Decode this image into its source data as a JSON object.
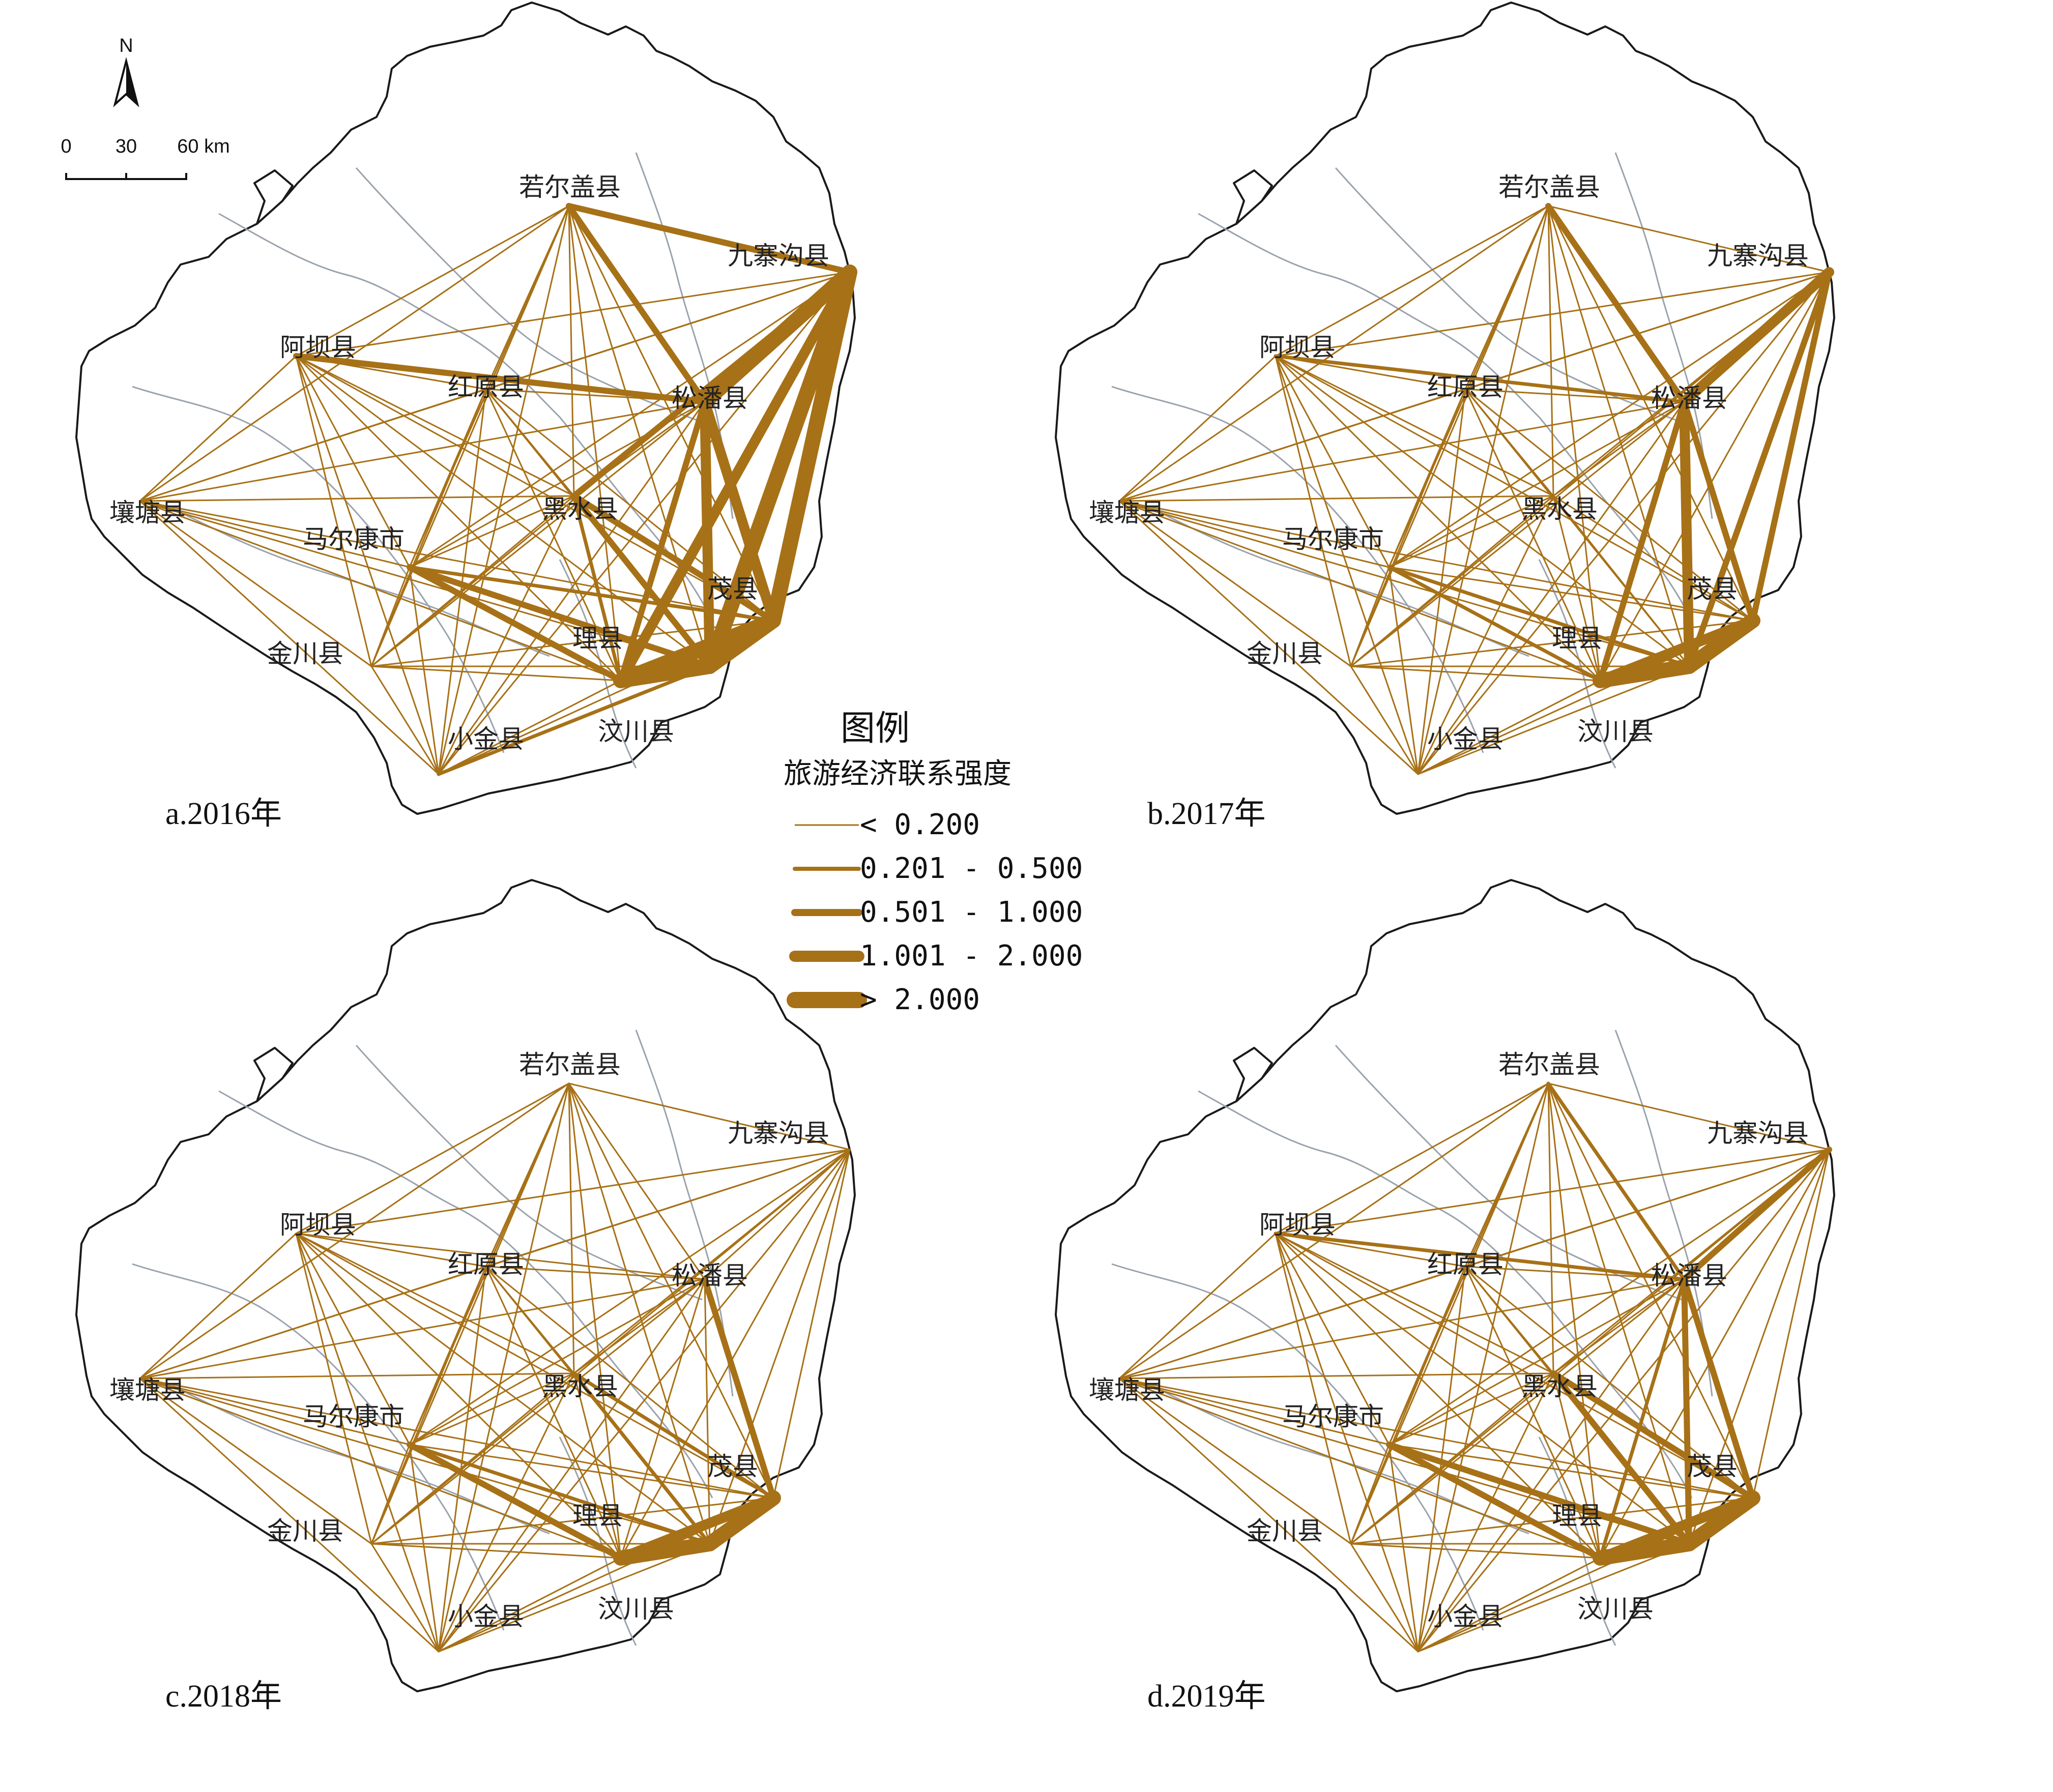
{
  "north_label": "N",
  "scale_bar": {
    "labels": [
      "0",
      "30",
      "60 km"
    ]
  },
  "legend": {
    "title": "图例",
    "subtitle": "旅游经济联系强度",
    "classes": [
      {
        "label": "< 0.200"
      },
      {
        "label": "0.201 - 0.500"
      },
      {
        "label": "0.501 - 1.000"
      },
      {
        "label": "1.001 - 2.000"
      },
      {
        "label": "> 2.000"
      }
    ]
  },
  "colors": {
    "link": "#A77117",
    "boundary": "#1a1a1a",
    "river": "#9aa3ad"
  },
  "counties": [
    "若尔盖县",
    "九寨沟县",
    "阿坝县",
    "红原县",
    "松潘县",
    "壤塘县",
    "黑水县",
    "马尔康市",
    "茂县",
    "金川县",
    "理县",
    "小金县",
    "汶川县"
  ],
  "county_labels": {
    "2016": [
      "若尔盖县",
      "九寨沟县",
      "阿坝县",
      "红原县",
      "松潘县",
      "壤塘县",
      "黑水县",
      "马尔康市",
      "茂县",
      "金川县",
      "理县",
      "小金县",
      "汶川县"
    ],
    "2017": [
      "若尔盖县",
      "九寨沟县",
      "阿坝县",
      "红原县",
      "松潘县",
      "壤塘县",
      "黑水县",
      "马尔康市",
      "茂县",
      "金川县",
      "理县",
      "小金县",
      "汶川县"
    ],
    "2018": [
      "若尔盖县",
      "九寨沟县",
      "阿坝县",
      "红原县",
      "松潘县",
      "壤塘县",
      "黑水县",
      "马尔康市",
      "茂县",
      "金川县",
      "理县",
      "小金县",
      "汶川县"
    ],
    "2019": [
      "若尔盖县",
      "九寨沟县",
      "阿坝县",
      "红原县",
      "松潘县",
      "壤塘县",
      "黑水县",
      "马尔康市",
      "茂县",
      "金川县",
      "理县",
      "小金县",
      "汶川县"
    ]
  },
  "panels": [
    {
      "label": "a.2016年",
      "strong_links": [
        {
          "from": "汶川县",
          "to": "九寨沟县",
          "class": 4
        },
        {
          "from": "茂县",
          "to": "九寨沟县",
          "class": 4
        },
        {
          "from": "松潘县",
          "to": "九寨沟县",
          "class": 4
        },
        {
          "from": "汶川县",
          "to": "茂县",
          "class": 4
        },
        {
          "from": "理县",
          "to": "茂县",
          "class": 4
        },
        {
          "from": "理县",
          "to": "汶川县",
          "class": 4
        },
        {
          "from": "松潘县",
          "to": "汶川县",
          "class": 3
        },
        {
          "from": "松潘县",
          "to": "茂县",
          "class": 3
        },
        {
          "from": "理县",
          "to": "九寨沟县",
          "class": 3
        },
        {
          "from": "理县",
          "to": "松潘县",
          "class": 2
        },
        {
          "from": "若尔盖县",
          "to": "松潘县",
          "class": 2
        },
        {
          "from": "若尔盖县",
          "to": "九寨沟县",
          "class": 2
        },
        {
          "from": "阿坝县",
          "to": "松潘县",
          "class": 2
        },
        {
          "from": "马尔康市",
          "to": "理县",
          "class": 2
        },
        {
          "from": "马尔康市",
          "to": "汶川县",
          "class": 2
        },
        {
          "from": "黑水县",
          "to": "茂县",
          "class": 2
        },
        {
          "from": "黑水县",
          "to": "九寨沟县",
          "class": 2
        },
        {
          "from": "黑水县",
          "to": "汶川县",
          "class": 2
        },
        {
          "from": "小金县",
          "to": "汶川县",
          "class": 1
        },
        {
          "from": "马尔康市",
          "to": "茂县",
          "class": 1
        },
        {
          "from": "黑水县",
          "to": "理县",
          "class": 1
        }
      ]
    },
    {
      "label": "b.2017年",
      "strong_links": [
        {
          "from": "理县",
          "to": "汶川县",
          "class": 4
        },
        {
          "from": "汶川县",
          "to": "茂县",
          "class": 4
        },
        {
          "from": "理县",
          "to": "茂县",
          "class": 3
        },
        {
          "from": "松潘县",
          "to": "九寨沟县",
          "class": 3
        },
        {
          "from": "松潘县",
          "to": "汶川县",
          "class": 3
        },
        {
          "from": "理县",
          "to": "松潘县",
          "class": 2
        },
        {
          "from": "茂县",
          "to": "松潘县",
          "class": 2
        },
        {
          "from": "茂县",
          "to": "九寨沟县",
          "class": 2
        },
        {
          "from": "汶川县",
          "to": "九寨沟县",
          "class": 2
        },
        {
          "from": "若尔盖县",
          "to": "松潘县",
          "class": 2
        },
        {
          "from": "阿坝县",
          "to": "松潘县",
          "class": 1
        },
        {
          "from": "马尔康市",
          "to": "理县",
          "class": 1
        },
        {
          "from": "马尔康市",
          "to": "汶川县",
          "class": 1
        }
      ]
    },
    {
      "label": "c.2018年",
      "strong_links": [
        {
          "from": "理县",
          "to": "汶川县",
          "class": 4
        },
        {
          "from": "汶川县",
          "to": "茂县",
          "class": 4
        },
        {
          "from": "理县",
          "to": "茂县",
          "class": 3
        },
        {
          "from": "松潘县",
          "to": "茂县",
          "class": 2
        },
        {
          "from": "马尔康市",
          "to": "理县",
          "class": 2
        },
        {
          "from": "马尔康市",
          "to": "汶川县",
          "class": 1
        },
        {
          "from": "黑水县",
          "to": "茂县",
          "class": 1
        },
        {
          "from": "黑水县",
          "to": "汶川县",
          "class": 1
        }
      ]
    },
    {
      "label": "d.2019年",
      "strong_links": [
        {
          "from": "理县",
          "to": "汶川县",
          "class": 4
        },
        {
          "from": "汶川县",
          "to": "茂县",
          "class": 4
        },
        {
          "from": "理县",
          "to": "茂县",
          "class": 3
        },
        {
          "from": "松潘县",
          "to": "汶川县",
          "class": 2
        },
        {
          "from": "松潘县",
          "to": "茂县",
          "class": 2
        },
        {
          "from": "松潘县",
          "to": "九寨沟县",
          "class": 2
        },
        {
          "from": "若尔盖县",
          "to": "松潘县",
          "class": 1
        },
        {
          "from": "马尔康市",
          "to": "理县",
          "class": 2
        },
        {
          "from": "马尔康市",
          "to": "汶川县",
          "class": 2
        },
        {
          "from": "黑水县",
          "to": "茂县",
          "class": 2
        },
        {
          "from": "黑水县",
          "to": "汶川县",
          "class": 2
        },
        {
          "from": "理县",
          "to": "松潘县",
          "class": 1
        },
        {
          "from": "阿坝县",
          "to": "松潘县",
          "class": 1
        }
      ]
    }
  ]
}
